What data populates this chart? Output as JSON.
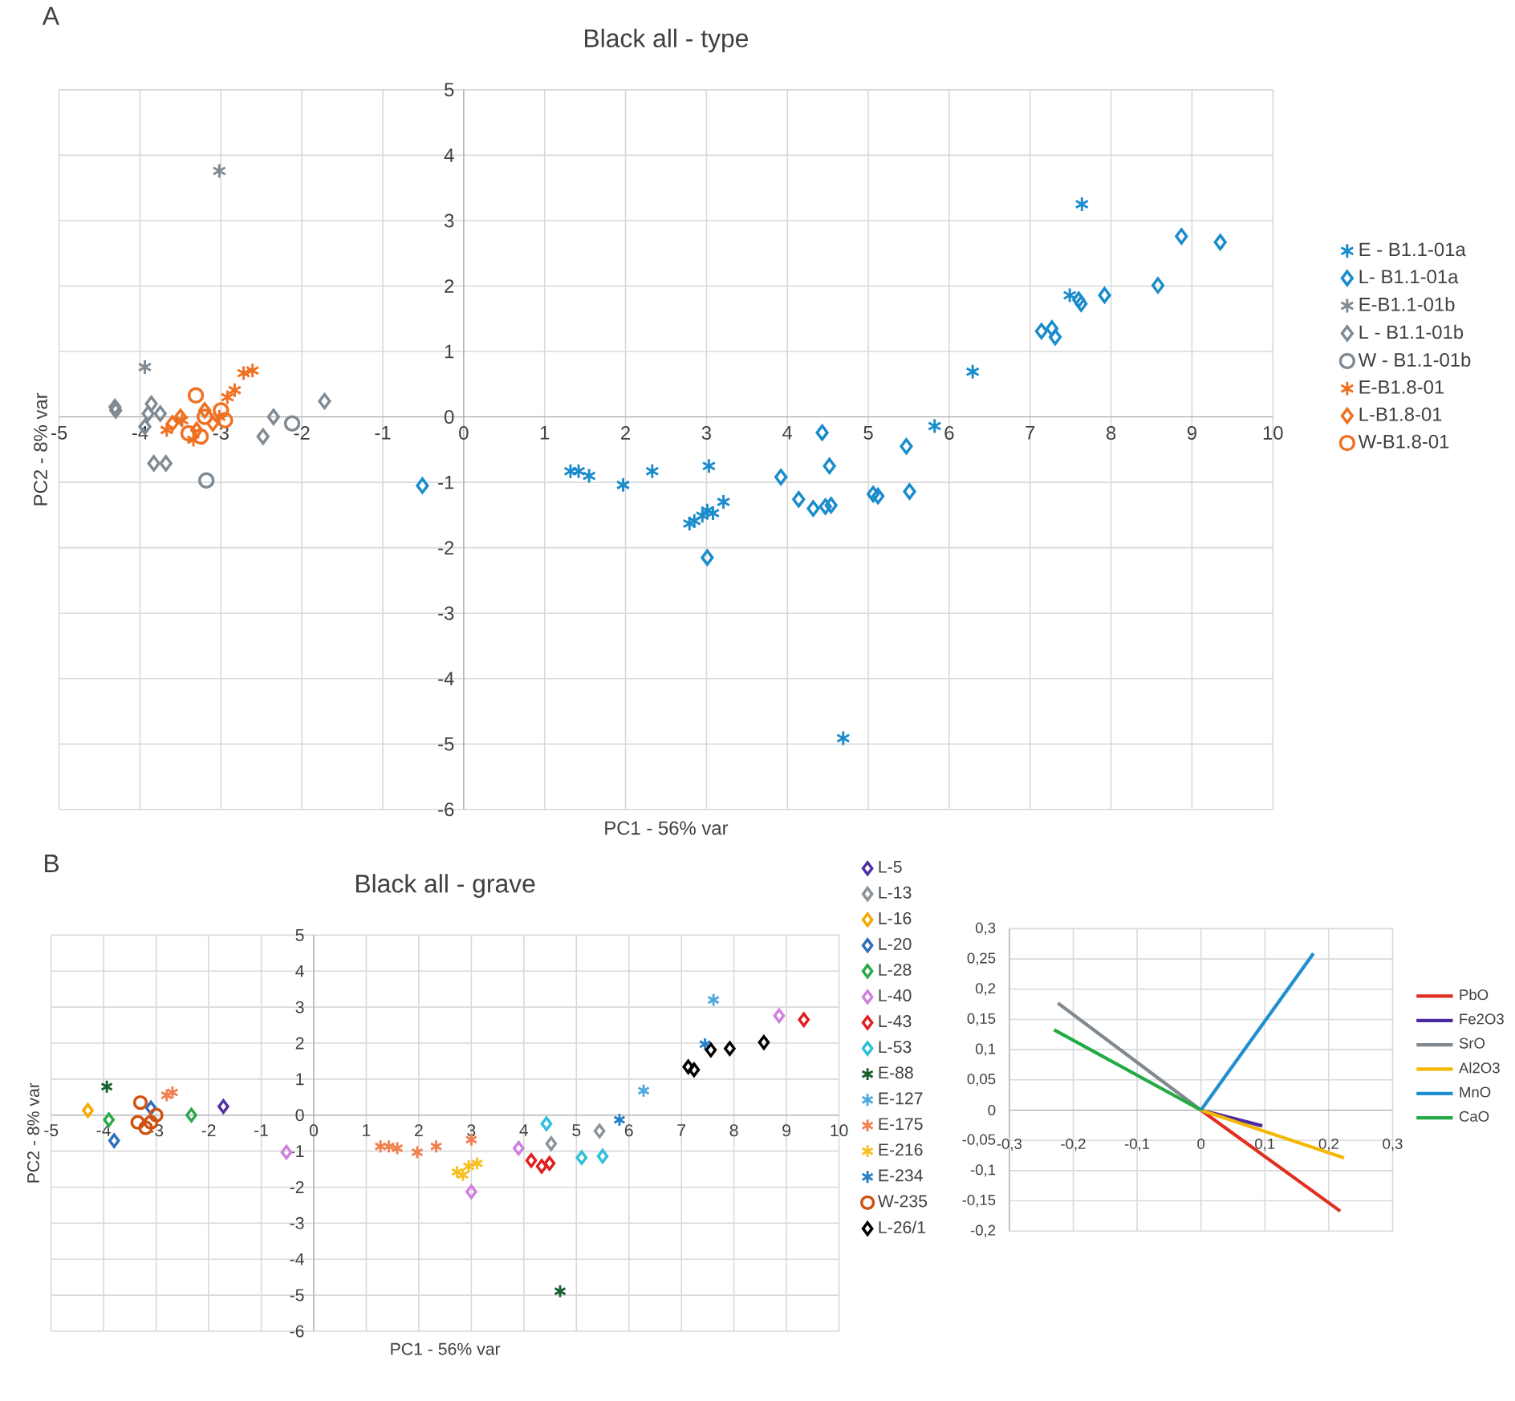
{
  "chart_data": [
    {
      "type": "scatter",
      "title": "Black all - type",
      "xlabel": "PC1 - 56% var",
      "ylabel": "PC2 - 8% var",
      "annotations": [
        "A"
      ],
      "xlim": [
        -5,
        10
      ],
      "ylim": [
        -6,
        5
      ],
      "xticks": [
        -5,
        -4,
        -3,
        -2,
        -1,
        0,
        1,
        2,
        3,
        4,
        5,
        6,
        7,
        8,
        9,
        10
      ],
      "yticks": [
        -6,
        -5,
        -4,
        -3,
        -2,
        -1,
        0,
        1,
        2,
        3,
        4,
        5
      ],
      "grid": true,
      "legend": "right",
      "series": [
        {
          "name": "E - B1.1-01a",
          "color": "#1a8ccc",
          "marker": "cross",
          "x": [
            1.32,
            1.42,
            1.55,
            1.97,
            2.33,
            2.79,
            2.85,
            2.95,
            3.01,
            3.03,
            3.08,
            3.21,
            4.69,
            5.82,
            6.29,
            7.49,
            7.64
          ],
          "values": [
            -0.83,
            -0.83,
            -0.9,
            -1.04,
            -0.83,
            -1.63,
            -1.59,
            -1.51,
            -1.43,
            -0.75,
            -1.47,
            -1.3,
            -4.91,
            -0.14,
            0.69,
            1.86,
            3.25
          ]
        },
        {
          "name": "L- B1.1-01a",
          "color": "#1a8ccc",
          "marker": "diamond",
          "x": [
            -0.51,
            3.01,
            3.92,
            4.14,
            4.32,
            4.43,
            4.47,
            4.52,
            4.54,
            5.06,
            5.12,
            5.47,
            5.51,
            7.14,
            7.27,
            7.31,
            7.6,
            7.63,
            7.92,
            8.58,
            8.87,
            9.35
          ],
          "values": [
            -1.05,
            -2.15,
            -0.92,
            -1.26,
            -1.4,
            -0.24,
            -1.37,
            -0.75,
            -1.35,
            -1.18,
            -1.21,
            -0.45,
            -1.14,
            1.31,
            1.35,
            1.22,
            1.79,
            1.73,
            1.86,
            2.01,
            2.76,
            2.67
          ]
        },
        {
          "name": "E-B1.1-01b",
          "color": "#7f8a93",
          "marker": "cross",
          "x": [
            -3.02,
            -3.94
          ],
          "values": [
            3.76,
            0.76
          ]
        },
        {
          "name": "L - B1.1-01b",
          "color": "#7f8a93",
          "marker": "diamond",
          "x": [
            -4.31,
            -4.3,
            -3.86,
            -3.94,
            -3.9,
            -3.83,
            -3.68,
            -3.75,
            -2.48,
            -2.35,
            -1.72
          ],
          "values": [
            0.15,
            0.1,
            0.2,
            -0.15,
            0.05,
            -0.71,
            -0.71,
            0.05,
            -0.3,
            0.0,
            0.24
          ]
        },
        {
          "name": "W - B1.1-01b",
          "color": "#7f8a93",
          "marker": "circle",
          "x": [
            -2.12,
            -3.18
          ],
          "values": [
            -0.1,
            -0.97
          ]
        },
        {
          "name": "E-B1.8-01",
          "color": "#f07020",
          "marker": "cross",
          "x": [
            -2.61,
            -2.72,
            -2.83,
            -2.92,
            -3.67,
            -3.48,
            -3.28,
            -3.02,
            -3.15,
            -3.34
          ],
          "values": [
            0.71,
            0.67,
            0.41,
            0.3,
            -0.2,
            -0.05,
            null,
            0.0,
            null,
            -0.35
          ]
        },
        {
          "name": "L-B1.8-01",
          "color": "#f07020",
          "marker": "diamond",
          "x": [
            -3.5,
            -3.3,
            -3.1,
            -3.6,
            -3.2
          ],
          "values": [
            0.0,
            -0.2,
            -0.1,
            -0.1,
            0.1
          ]
        },
        {
          "name": "W-B1.8-01",
          "color": "#f07020",
          "marker": "circle",
          "x": [
            -3.31,
            -3.0,
            -3.4,
            -3.25,
            -2.95,
            -3.2
          ],
          "values": [
            0.33,
            0.1,
            -0.25,
            -0.3,
            -0.05,
            0.0
          ]
        }
      ]
    },
    {
      "type": "scatter",
      "title": "Black all - grave",
      "xlabel": "PC1 - 56% var",
      "ylabel": "PC2 - 8% var",
      "annotations": [
        "B"
      ],
      "xlim": [
        -5,
        10
      ],
      "ylim": [
        -6,
        5
      ],
      "xticks": [
        -5,
        -4,
        -3,
        -2,
        -1,
        0,
        1,
        2,
        3,
        4,
        5,
        6,
        7,
        8,
        9,
        10
      ],
      "yticks": [
        -6,
        -5,
        -4,
        -3,
        -2,
        -1,
        0,
        1,
        2,
        3,
        4,
        5
      ],
      "grid": true,
      "legend": "right",
      "series": [
        {
          "name": "L-5",
          "color": "#5030a0",
          "marker": "diamond",
          "x": [
            -1.72
          ],
          "values": [
            0.24
          ]
        },
        {
          "name": "L-13",
          "color": "#8c9399",
          "marker": "diamond",
          "x": [
            4.52,
            5.44
          ],
          "values": [
            -0.79,
            -0.44
          ]
        },
        {
          "name": "L-16",
          "color": "#f5a800",
          "marker": "diamond",
          "x": [
            -4.3
          ],
          "values": [
            0.13
          ]
        },
        {
          "name": "L-20",
          "color": "#2f6fbf",
          "marker": "diamond",
          "x": [
            -3.8,
            -3.1
          ],
          "values": [
            -0.71,
            0.2
          ]
        },
        {
          "name": "L-28",
          "color": "#2ca84a",
          "marker": "diamond",
          "x": [
            -3.9,
            -2.33
          ],
          "values": [
            -0.13,
            0.0
          ]
        },
        {
          "name": "L-40",
          "color": "#d080e0",
          "marker": "diamond",
          "x": [
            -0.52,
            3.9,
            3.0,
            8.86
          ],
          "values": [
            -1.03,
            -0.92,
            -2.13,
            2.76
          ]
        },
        {
          "name": "L-43",
          "color": "#e02020",
          "marker": "diamond",
          "x": [
            4.14,
            4.34,
            4.49,
            9.33
          ],
          "values": [
            -1.26,
            -1.42,
            -1.34,
            2.65
          ]
        },
        {
          "name": "L-53",
          "color": "#30c0d8",
          "marker": "diamond",
          "x": [
            4.43,
            5.1,
            5.5
          ],
          "values": [
            -0.24,
            -1.18,
            -1.14
          ]
        },
        {
          "name": "E-88",
          "color": "#1a6030",
          "marker": "cross",
          "x": [
            -3.94,
            4.69
          ],
          "values": [
            0.79,
            -4.89
          ]
        },
        {
          "name": "E-127",
          "color": "#50a8e0",
          "marker": "cross",
          "x": [
            7.61,
            6.28
          ],
          "values": [
            3.2,
            0.68
          ]
        },
        {
          "name": "E-175",
          "color": "#f08050",
          "marker": "cross",
          "x": [
            1.27,
            1.43,
            1.59,
            1.97,
            2.33,
            3.0,
            -2.69,
            -2.8
          ],
          "values": [
            -0.87,
            -0.87,
            -0.92,
            -1.03,
            -0.87,
            -0.68,
            0.63,
            0.55
          ]
        },
        {
          "name": "E-216",
          "color": "#f5c020",
          "marker": "cross",
          "x": [
            2.73,
            2.95,
            3.11,
            2.84
          ],
          "values": [
            -1.58,
            -1.42,
            -1.34,
            -1.66
          ]
        },
        {
          "name": "E-234",
          "color": "#2880c8",
          "marker": "cross",
          "x": [
            5.82,
            7.45
          ],
          "values": [
            -0.13,
            1.97
          ]
        },
        {
          "name": "W-235",
          "color": "#d05010",
          "marker": "circle",
          "x": [
            -3.3,
            -3.1,
            -3.35,
            -3.0,
            -3.2
          ],
          "values": [
            0.35,
            -0.2,
            -0.2,
            0.0,
            -0.35
          ]
        },
        {
          "name": "L-26/1",
          "color": "#000000",
          "marker": "diamond",
          "x": [
            7.13,
            7.24,
            7.56,
            7.92,
            8.57
          ],
          "values": [
            1.34,
            1.26,
            1.81,
            1.85,
            2.02
          ]
        }
      ]
    },
    {
      "type": "line",
      "xlim": [
        -0.3,
        0.3
      ],
      "ylim": [
        -0.2,
        0.3
      ],
      "grid": true,
      "legend": "right",
      "xticks": [
        {
          "value": -0.3,
          "label": "-0,3"
        },
        {
          "value": -0.2,
          "label": "-0,2"
        },
        {
          "value": -0.1,
          "label": "-0,1"
        },
        0,
        {
          "value": 0.1,
          "label": "0,1"
        },
        {
          "value": 0.2,
          "label": "0,2"
        },
        {
          "value": 0.3,
          "label": "0,3"
        }
      ],
      "yticks": [
        {
          "value": -0.2,
          "label": "-0,2"
        },
        {
          "value": -0.15,
          "label": "-0,15"
        },
        {
          "value": -0.1,
          "label": "-0,1"
        },
        {
          "value": -0.05,
          "label": "-0,05"
        },
        0,
        {
          "value": 0.05,
          "label": "0,05"
        },
        {
          "value": 0.1,
          "label": "0,1"
        },
        {
          "value": 0.15,
          "label": "0,15"
        },
        {
          "value": 0.2,
          "label": "0,2"
        },
        {
          "value": 0.25,
          "label": "0,25"
        },
        {
          "value": 0.3,
          "label": "0,3"
        }
      ],
      "series": [
        {
          "name": "PbO",
          "color": "#e03020",
          "x": [
            0,
            0.218
          ],
          "values": [
            0,
            -0.167
          ]
        },
        {
          "name": "Fe2O3",
          "color": "#4b2ca0",
          "x": [
            0,
            0.096
          ],
          "values": [
            0,
            -0.026
          ]
        },
        {
          "name": "SrO",
          "color": "#808890",
          "x": [
            0,
            -0.224
          ],
          "values": [
            0,
            0.177
          ]
        },
        {
          "name": "Al2O3",
          "color": "#f5b800",
          "x": [
            0,
            0.224
          ],
          "values": [
            0,
            -0.079
          ]
        },
        {
          "name": "MnO",
          "color": "#1f8fd0",
          "x": [
            0,
            0.176
          ],
          "values": [
            0,
            0.259
          ]
        },
        {
          "name": "CaO",
          "color": "#22aa44",
          "x": [
            0,
            -0.23
          ],
          "values": [
            0,
            0.133
          ]
        }
      ]
    }
  ]
}
